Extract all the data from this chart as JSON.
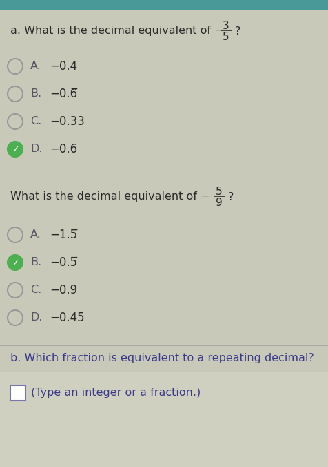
{
  "bg_color": "#c9c9b9",
  "teal_bar_color": "#4a9999",
  "text_color": "#2a2a2a",
  "label_color": "#555566",
  "green_check_color": "#4caf50",
  "blue_text_color": "#3a3a8a",
  "title1_pre": "a. What is the decimal equivalent of −",
  "frac1_num": "3",
  "frac1_den": "5",
  "options1": [
    {
      "label": "A.",
      "text": "−0.4",
      "selected": false,
      "correct": false
    },
    {
      "label": "B.",
      "text": "−0.6̅",
      "selected": false,
      "correct": false
    },
    {
      "label": "C.",
      "text": "−0.33",
      "selected": false,
      "correct": false
    },
    {
      "label": "D.",
      "text": "−0.6",
      "selected": true,
      "correct": true
    }
  ],
  "title2_pre": "What is the decimal equivalent of −",
  "frac2_num": "5",
  "frac2_den": "9",
  "options2": [
    {
      "label": "A.",
      "text": "−1.5̅",
      "selected": false,
      "correct": false
    },
    {
      "label": "B.",
      "text": "−0.5̅",
      "selected": true,
      "correct": true
    },
    {
      "label": "C.",
      "text": "−0.9",
      "selected": false,
      "correct": false
    },
    {
      "label": "D.",
      "text": "−0.45",
      "selected": false,
      "correct": false
    }
  ],
  "part_b_label": "b.",
  "part_b_text": " Which fraction is equivalent to a repeating decimal?",
  "part_b_hint": "(Type an integer or a fraction.)",
  "figsize": [
    4.77,
    6.76
  ],
  "dpi": 100
}
